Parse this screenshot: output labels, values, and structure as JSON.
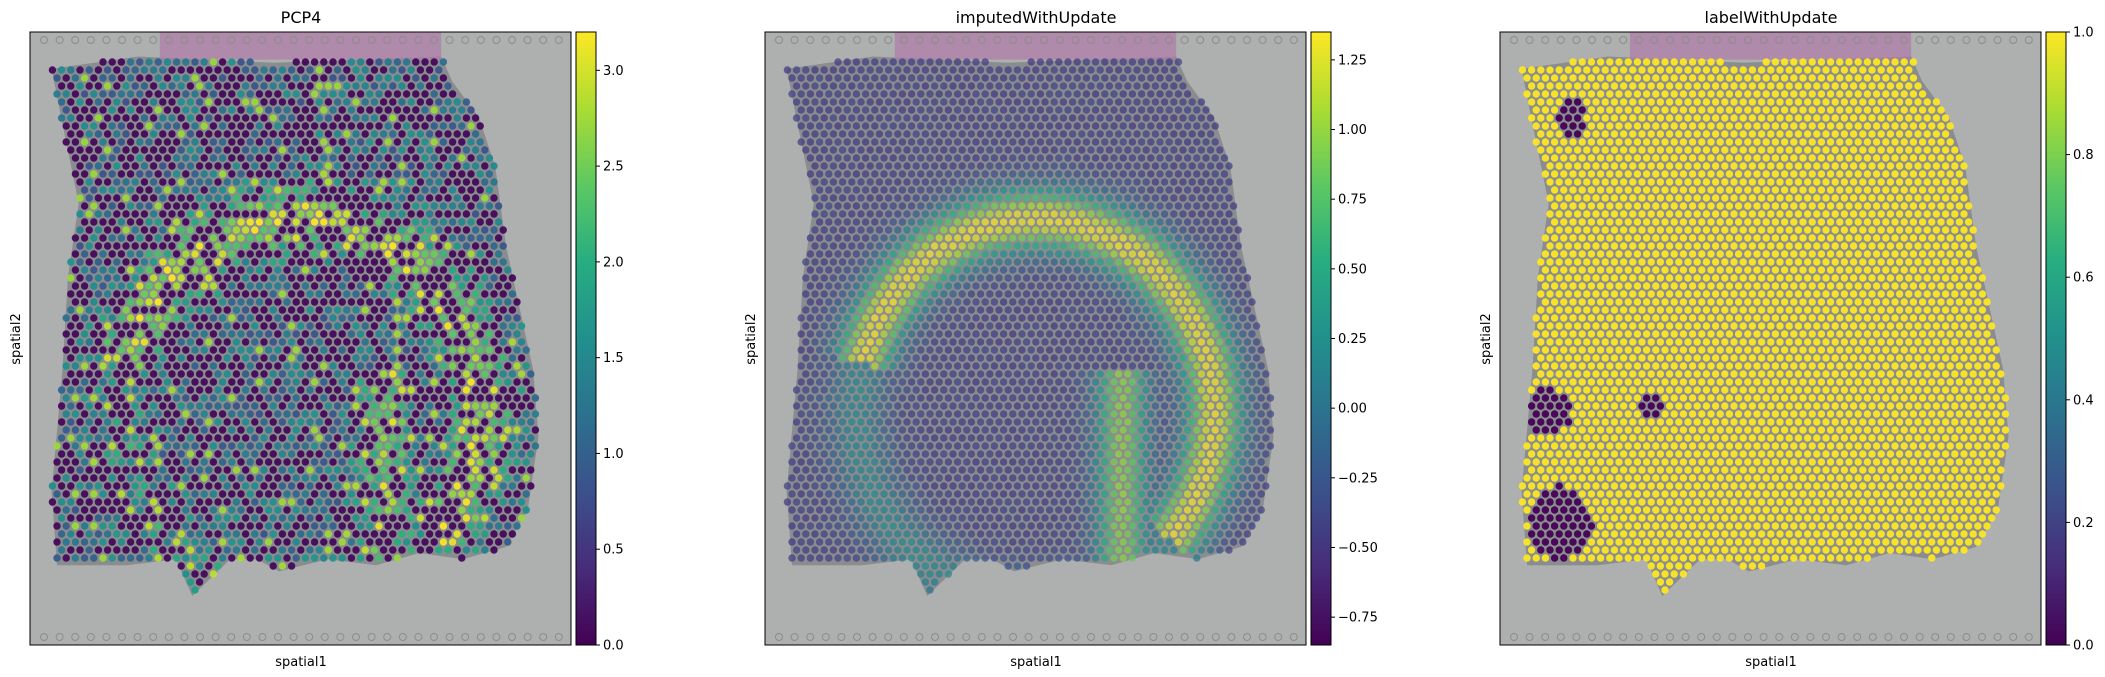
{
  "chart_data": [
    {
      "type": "spatial-scatter",
      "title": "PCP4",
      "xlabel": "spatial1",
      "ylabel": "spatial2",
      "colormap": "viridis",
      "colorbar": {
        "min": 0.0,
        "max": 3.2,
        "ticks": [
          0.0,
          0.5,
          1.0,
          1.5,
          2.0,
          2.5,
          3.0
        ],
        "tick_labels": [
          "0.0",
          "0.5",
          "1.0",
          "1.5",
          "2.0",
          "2.5",
          "3.0"
        ]
      },
      "pattern": "sparse"
    },
    {
      "type": "spatial-scatter",
      "title": "imputedWithUpdate",
      "xlabel": "spatial1",
      "ylabel": "spatial2",
      "colormap": "viridis",
      "colorbar": {
        "min": -0.85,
        "max": 1.35,
        "ticks": [
          -0.75,
          -0.5,
          -0.25,
          0.0,
          0.25,
          0.5,
          0.75,
          1.0,
          1.25
        ],
        "tick_labels": [
          "−0.75",
          "−0.50",
          "−0.25",
          "0.00",
          "0.25",
          "0.50",
          "0.75",
          "1.00",
          "1.25"
        ]
      },
      "pattern": "smooth"
    },
    {
      "type": "spatial-scatter",
      "title": "labelWithUpdate",
      "xlabel": "spatial1",
      "ylabel": "spatial2",
      "colormap": "viridis",
      "colorbar": {
        "min": 0.0,
        "max": 1.0,
        "ticks": [
          0.0,
          0.2,
          0.4,
          0.6,
          0.8,
          1.0
        ],
        "tick_labels": [
          "0.0",
          "0.2",
          "0.4",
          "0.6",
          "0.8",
          "1.0"
        ]
      },
      "pattern": "binary"
    }
  ],
  "colors": {
    "background_tissue": "#a9abaa",
    "axes_frame": "#000000",
    "fiducial_ring": "#8c8c8c"
  }
}
